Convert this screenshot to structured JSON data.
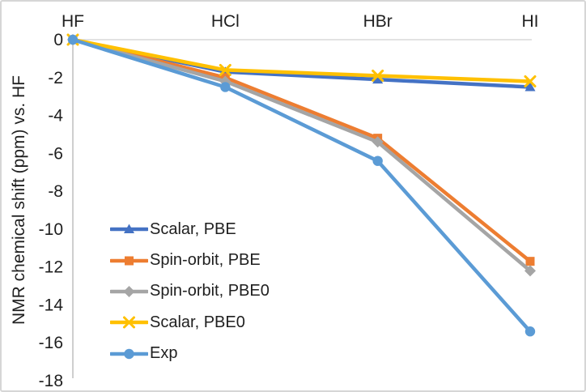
{
  "chart_data": {
    "type": "line",
    "categories": [
      "HF",
      "HCl",
      "HBr",
      "HI"
    ],
    "series": [
      {
        "name": "Scalar, PBE",
        "marker": "triangle",
        "color": "#4472C4",
        "values": [
          0,
          -1.7,
          -2.1,
          -2.5
        ]
      },
      {
        "name": "Spin-orbit, PBE",
        "marker": "square",
        "color": "#ED7D31",
        "values": [
          0,
          -2.0,
          -5.2,
          -11.7
        ]
      },
      {
        "name": "Spin-orbit, PBE0",
        "marker": "diamond",
        "color": "#A5A5A5",
        "values": [
          0,
          -2.2,
          -5.4,
          -12.2
        ]
      },
      {
        "name": "Scalar, PBE0",
        "marker": "x",
        "color": "#FFC000",
        "values": [
          0,
          -1.6,
          -1.9,
          -2.2
        ]
      },
      {
        "name": "Exp",
        "marker": "circle",
        "color": "#5B9BD5",
        "values": [
          0,
          -2.5,
          -6.4,
          -15.4
        ]
      }
    ],
    "title": "",
    "xlabel": "",
    "ylabel": "NMR chemical shift (ppm) vs. HF",
    "ylim": [
      -18,
      0
    ],
    "y_ticks": [
      0,
      -2,
      -4,
      -6,
      -8,
      -10,
      -12,
      -14,
      -16,
      -18
    ],
    "grid": "zero-line-only",
    "legend_position": "inside-lower-left",
    "colors": {
      "axis_line": "#bfbfbf",
      "gridline": "#d9d9d9",
      "text": "#1f1f1f",
      "frame_border": "#d6d6d6"
    }
  }
}
